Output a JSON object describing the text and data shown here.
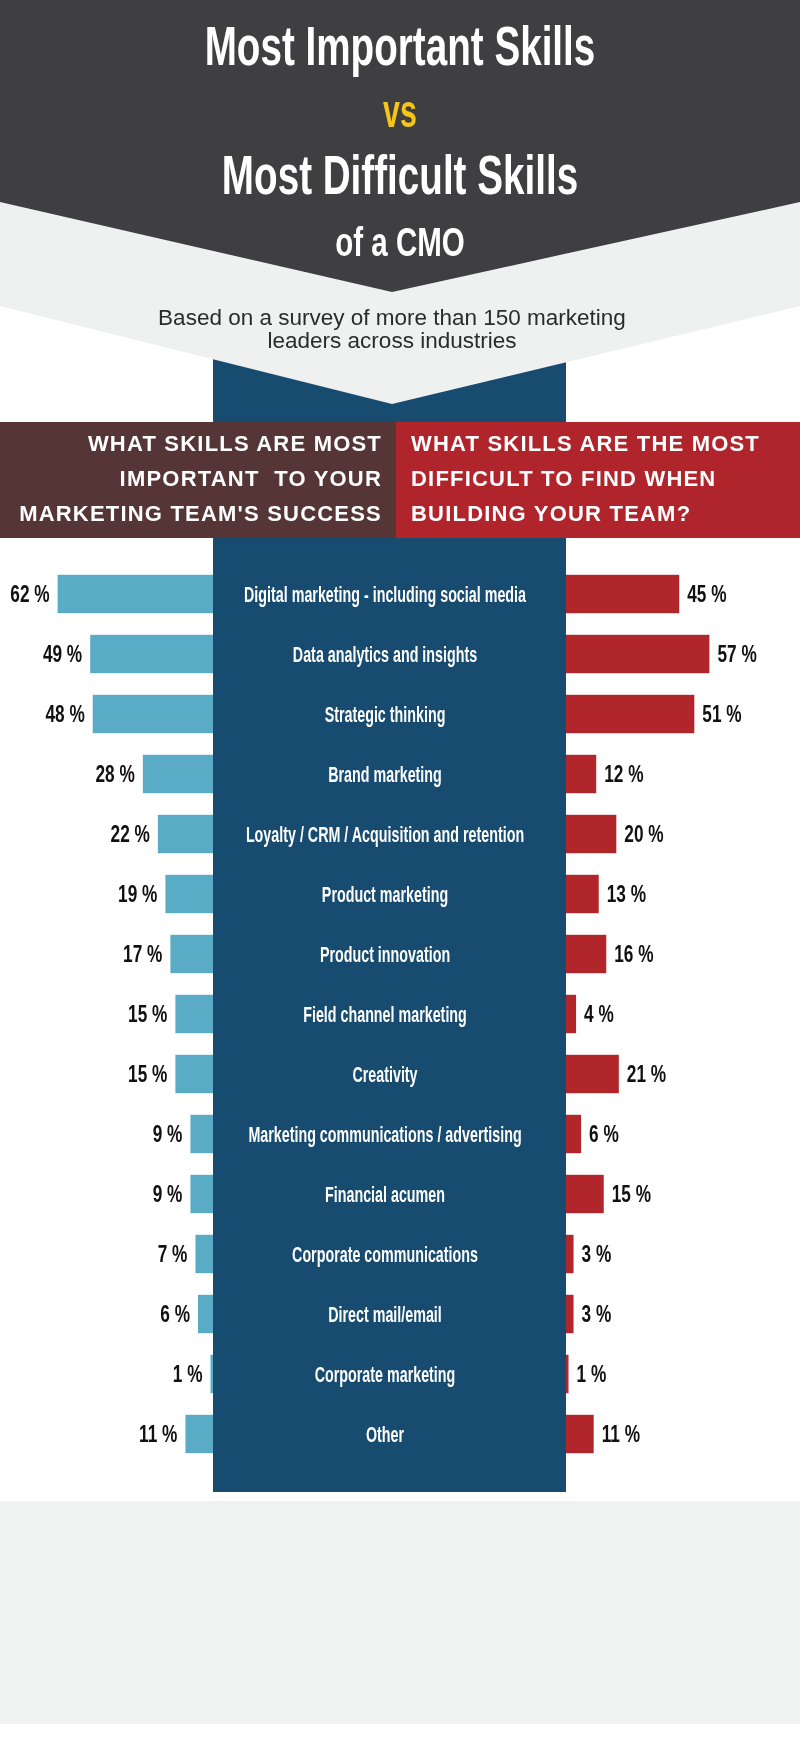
{
  "chart_data": [
    {
      "type": "other",
      "title": "Most Important Skills\nvs\nMost Difficult Skills\nof a CMO",
      "subtitle": "Based on a survey of more than 150 marketing leaders across industries"
    },
    {
      "type": "bar",
      "orientation": "horizontal",
      "title": "WHAT SKILLS ARE MOST IMPORTANT  TO YOUR MARKETING TEAM'S SUCCESS",
      "categories": [
        "Digital marketing - including social media",
        "Data analytics and insights",
        "Strategic thinking",
        "Brand marketing",
        "Loyalty / CRM / Acquisition and retention",
        "Product marketing",
        "Product innovation",
        "Field channel marketing",
        "Creativity",
        "Marketing communications / advertising",
        "Financial acumen",
        "Corporate communications",
        "Direct mail/email",
        "Corporate marketing",
        "Other"
      ],
      "values": [
        62,
        49,
        48,
        28,
        22,
        19,
        17,
        15,
        15,
        9,
        9,
        7,
        6,
        1,
        11
      ],
      "value_labels": [
        "62 %",
        "49 %",
        "48 %",
        "28 %",
        "22 %",
        "19 %",
        "17 %",
        "15 %",
        "15 %",
        "9 %",
        "9 %",
        "7 %",
        "6 %",
        "1 %",
        "11 %"
      ],
      "color": "#5aabc6",
      "xlim": [
        85,
        0
      ],
      "tick_labels": "y"
    },
    {
      "type": "bar",
      "orientation": "horizontal",
      "title": "WHAT SKILLS ARE THE MOST DIFFICULT TO FIND WHEN BUILDING YOUR TEAM?",
      "categories": [
        null,
        null,
        null,
        null,
        null,
        null,
        null,
        null,
        null,
        null,
        null,
        null,
        null,
        null,
        null
      ],
      "values": [
        45,
        57,
        51,
        12,
        20,
        13,
        16,
        4,
        21,
        6,
        15,
        3,
        3,
        1,
        11
      ],
      "value_labels": [
        "45 %",
        "57 %",
        "51 %",
        "12 %",
        "20 %",
        "13 %",
        "16 %",
        "4 %",
        "21 %",
        "6 %",
        "15 %",
        "3 %",
        "3 %",
        "1 %",
        "11 %"
      ],
      "color": "#b0262b",
      "xlim": [
        0,
        93
      ],
      "tick_labels": false
    }
  ]
}
